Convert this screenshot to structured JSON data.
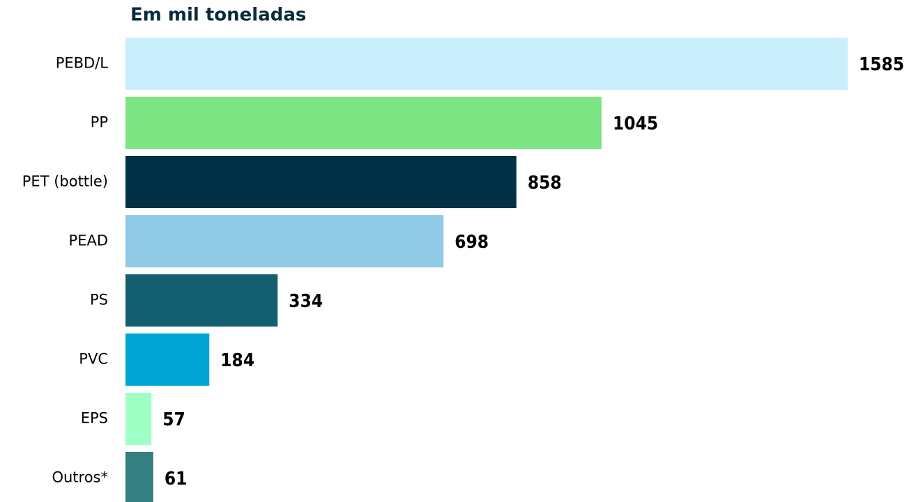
{
  "chart_data": {
    "type": "bar",
    "orientation": "horizontal",
    "title": "Em mil toneladas",
    "categories": [
      "PEBD/L",
      "PP",
      "PET (bottle)",
      "PEAD",
      "PS",
      "PVC",
      "EPS",
      "Outros*"
    ],
    "values": [
      1585,
      1045,
      858,
      698,
      334,
      184,
      57,
      61
    ],
    "colors": [
      "#c9effc",
      "#7ee585",
      "#023047",
      "#8fcae6",
      "#135f6f",
      "#00a5d3",
      "#a0ffc4",
      "#347f82"
    ]
  }
}
